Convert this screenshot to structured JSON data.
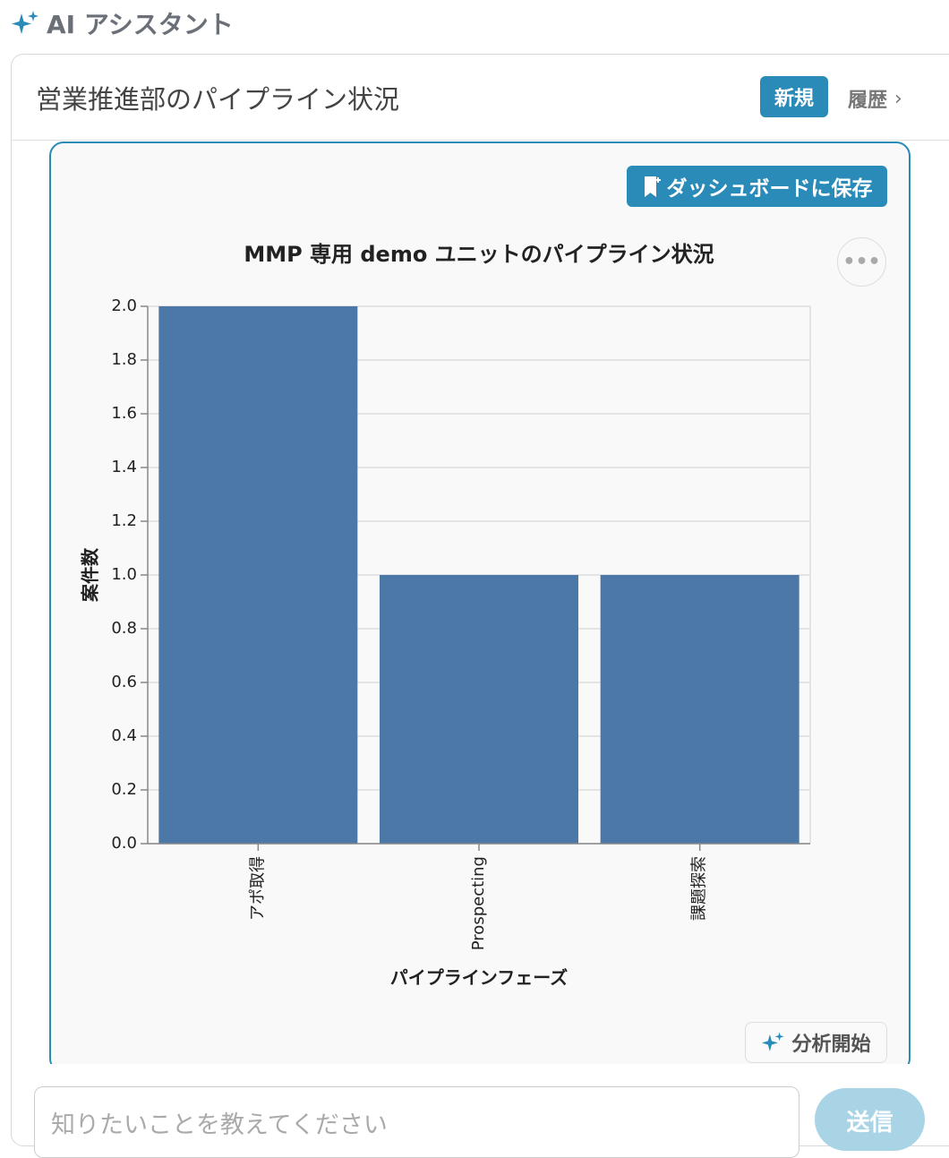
{
  "header": {
    "title": "AI アシスタント"
  },
  "conversation": {
    "title": "営業推進部のパイプライン状況",
    "new_button": "新規",
    "history_link": "履歴"
  },
  "card": {
    "save_button": "ダッシュボードに保存",
    "analyze_button": "分析開始"
  },
  "chart_data": {
    "type": "bar",
    "title": "MMP 専用 demo ユニットのパイプライン状況",
    "x_label": "パイプラインフェーズ",
    "y_label": "案件数",
    "categories": [
      "アポ取得",
      "Prospecting",
      "課題探索"
    ],
    "values": [
      2,
      1,
      1
    ],
    "color": "#4c78a8",
    "ylim": [
      0,
      2
    ],
    "yticks": [
      {
        "value": 0,
        "label": "0.0"
      },
      0.2,
      0.4,
      0.6,
      0.8,
      {
        "value": 1,
        "label": "1.0"
      },
      1.2,
      1.4,
      1.6,
      1.8,
      {
        "value": 2,
        "label": "2.0"
      }
    ],
    "grid": true
  },
  "input": {
    "placeholder": "知りたいことを教えてください",
    "send_button": "送信"
  }
}
